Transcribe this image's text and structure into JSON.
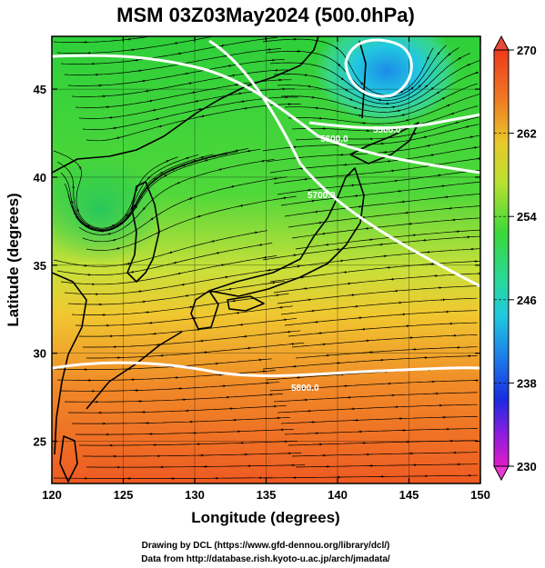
{
  "title": "MSM 03Z03May2024 (500.0hPa)",
  "xlabel": "Longitude (degrees)",
  "ylabel": "Latitude  (degrees)",
  "x_ticks": [
    "120",
    "125",
    "130",
    "135",
    "140",
    "145",
    "150"
  ],
  "y_ticks": [
    "25",
    "30",
    "35",
    "40",
    "45"
  ],
  "colorbar": {
    "min": 230,
    "max": 270,
    "tick_labels": [
      "270",
      "262",
      "254",
      "246",
      "238",
      "230"
    ]
  },
  "contour_labels": [
    "5500.0",
    "5600.0",
    "5700.0",
    "5800.0"
  ],
  "credits": {
    "line1": "Drawing by DCL (https://www.gfd-dennou.org/library/dcl/)",
    "line2": "Data from http://database.rish.kyoto-u.ac.jp/arch/jmadata/"
  }
}
